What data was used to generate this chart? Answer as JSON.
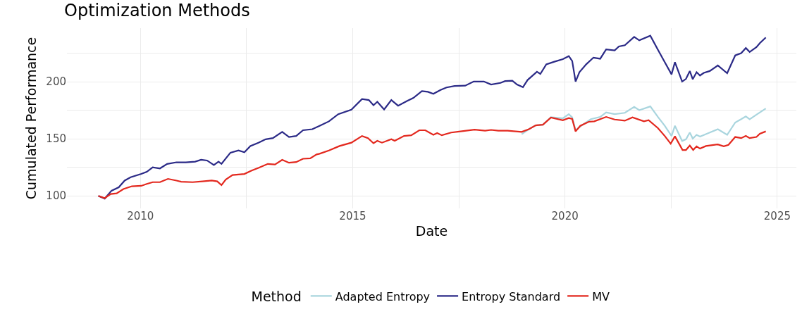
{
  "chart_data": {
    "type": "line",
    "title": "Optimization Methods",
    "xlabel": "Date",
    "ylabel": "Cumulated Performance",
    "legend_title": "Method",
    "legend": "bottom",
    "grid": true,
    "line_style": "solid",
    "marker": "none",
    "xlim": [
      2008.27,
      2025.45
    ],
    "xticks": [
      2010,
      {
        "value": 2012.5,
        "label": null
      },
      2015,
      {
        "value": 2017.5,
        "label": null
      },
      2020,
      {
        "value": 2022.5,
        "label": null
      },
      2025
    ],
    "ylim": [
      89,
      247
    ],
    "yticks": [
      100,
      {
        "value": 125,
        "label": null
      },
      150,
      {
        "value": 175,
        "label": null
      },
      200,
      {
        "value": 225,
        "label": null
      }
    ],
    "series": [
      {
        "name": "Adapted Entropy",
        "color": "#a9d5de",
        "x": [
          2018.98,
          2019.15,
          2019.31,
          2019.48,
          2019.67,
          2019.95,
          2020.09,
          2020.17,
          2020.25,
          2020.44,
          2020.61,
          2020.83,
          2020.97,
          2021.17,
          2021.41,
          2021.63,
          2021.75,
          2022.01,
          2022.19,
          2022.35,
          2022.51,
          2022.59,
          2022.76,
          2022.85,
          2022.94,
          2023.01,
          2023.1,
          2023.18,
          2023.41,
          2023.6,
          2023.82,
          2024.01,
          2024.15,
          2024.26,
          2024.35,
          2024.51,
          2024.73
        ],
        "values": [
          154,
          158.4,
          161.8,
          162.4,
          169,
          168,
          171.6,
          168.8,
          157.5,
          163,
          167.2,
          169.2,
          173.1,
          171.6,
          172.8,
          178,
          175.1,
          178.4,
          169.2,
          161.4,
          152.5,
          161.4,
          148.1,
          149.6,
          155.5,
          150.2,
          153.5,
          151.9,
          155.5,
          158.4,
          153.5,
          164.3,
          167.2,
          169.6,
          167.2,
          171.2,
          176.6
        ]
      },
      {
        "name": "Entropy Standard",
        "color": "#2b2a87",
        "x": [
          2009.01,
          2009.16,
          2009.32,
          2009.49,
          2009.63,
          2009.77,
          2010.02,
          2010.15,
          2010.29,
          2010.46,
          2010.63,
          2010.85,
          2011.07,
          2011.29,
          2011.43,
          2011.57,
          2011.73,
          2011.84,
          2011.91,
          2012.12,
          2012.31,
          2012.45,
          2012.59,
          2012.78,
          2012.95,
          2013.12,
          2013.34,
          2013.5,
          2013.67,
          2013.83,
          2014.05,
          2014.22,
          2014.44,
          2014.66,
          2014.97,
          2015.22,
          2015.38,
          2015.49,
          2015.58,
          2015.74,
          2015.91,
          2016.07,
          2016.27,
          2016.43,
          2016.63,
          2016.77,
          2016.9,
          2017.07,
          2017.21,
          2017.4,
          2017.65,
          2017.85,
          2018.09,
          2018.26,
          2018.48,
          2018.59,
          2018.76,
          2018.87,
          2019.01,
          2019.12,
          2019.34,
          2019.42,
          2019.56,
          2019.75,
          2019.95,
          2020.09,
          2020.17,
          2020.25,
          2020.34,
          2020.5,
          2020.67,
          2020.83,
          2020.97,
          2021.17,
          2021.27,
          2021.41,
          2021.63,
          2021.75,
          2022.01,
          2022.19,
          2022.35,
          2022.51,
          2022.59,
          2022.76,
          2022.85,
          2022.94,
          2023.01,
          2023.1,
          2023.18,
          2023.27,
          2023.41,
          2023.6,
          2023.82,
          2024.01,
          2024.15,
          2024.26,
          2024.35,
          2024.51,
          2024.59,
          2024.73
        ],
        "values": [
          100,
          97.6,
          104.5,
          107.5,
          113.4,
          116.3,
          119.2,
          121,
          125,
          124,
          128,
          129.4,
          129.4,
          130,
          131.6,
          131,
          127,
          130,
          128,
          137.8,
          139.8,
          138.2,
          143.7,
          146.6,
          149.6,
          150.6,
          156,
          151.6,
          152.5,
          157.5,
          158.4,
          161.4,
          165.3,
          171.6,
          175.5,
          184.9,
          184,
          179.4,
          182.5,
          175.7,
          184,
          179,
          183,
          185.9,
          191.8,
          191.2,
          189.4,
          192.8,
          195,
          196.3,
          196.6,
          200.2,
          200.2,
          197.6,
          199,
          200.6,
          201,
          197.6,
          195.3,
          201.6,
          208.8,
          206.9,
          215.3,
          217.6,
          219.8,
          222.5,
          218.2,
          200.2,
          208.4,
          215.3,
          221.2,
          220.2,
          228.4,
          227.5,
          231,
          232,
          239.4,
          236.3,
          240.4,
          228,
          217.2,
          206.5,
          217.2,
          200.2,
          202.5,
          209.4,
          202.2,
          208.4,
          205.5,
          207.8,
          209.4,
          214.3,
          207.5,
          223.1,
          225.1,
          229.6,
          226.1,
          230.4,
          233.9,
          238.8
        ]
      },
      {
        "name": "MV",
        "color": "#e3281e",
        "x": [
          2009.01,
          2009.16,
          2009.3,
          2009.44,
          2009.6,
          2009.8,
          2010.02,
          2010.15,
          2010.29,
          2010.46,
          2010.65,
          2010.85,
          2010.96,
          2011.23,
          2011.46,
          2011.68,
          2011.81,
          2011.91,
          2012.01,
          2012.17,
          2012.45,
          2012.62,
          2012.78,
          2013.0,
          2013.17,
          2013.34,
          2013.5,
          2013.67,
          2013.83,
          2014.0,
          2014.15,
          2014.22,
          2014.44,
          2014.69,
          2014.97,
          2015.22,
          2015.36,
          2015.49,
          2015.58,
          2015.69,
          2015.91,
          2015.99,
          2016.21,
          2016.38,
          2016.57,
          2016.71,
          2016.9,
          2016.99,
          2017.1,
          2017.32,
          2017.54,
          2017.87,
          2018.12,
          2018.26,
          2018.43,
          2018.65,
          2018.98,
          2019.15,
          2019.31,
          2019.48,
          2019.67,
          2019.95,
          2020.09,
          2020.17,
          2020.25,
          2020.36,
          2020.56,
          2020.69,
          2020.97,
          2021.17,
          2021.41,
          2021.59,
          2021.86,
          2021.97,
          2022.19,
          2022.35,
          2022.49,
          2022.59,
          2022.77,
          2022.85,
          2022.94,
          2023.02,
          2023.1,
          2023.18,
          2023.32,
          2023.6,
          2023.74,
          2023.85,
          2024.01,
          2024.15,
          2024.26,
          2024.35,
          2024.51,
          2024.59,
          2024.73
        ],
        "values": [
          100,
          98,
          101.6,
          102.2,
          106,
          108.4,
          108.8,
          110.4,
          112,
          112,
          114.9,
          113.4,
          112.4,
          112,
          112.7,
          113.4,
          112.7,
          109.4,
          114.3,
          118.2,
          119.2,
          122.2,
          124.5,
          128,
          127.5,
          131.6,
          129,
          129.6,
          132.5,
          132.9,
          136.3,
          136.9,
          139.8,
          143.7,
          146.6,
          152.5,
          150.6,
          146.1,
          148.2,
          146.6,
          149.6,
          148.2,
          152.5,
          153.1,
          157.5,
          157.5,
          153.5,
          155.1,
          153.1,
          155.5,
          156.5,
          158.1,
          157.1,
          157.8,
          157.1,
          157.1,
          156.1,
          158.4,
          161.8,
          162.4,
          168.6,
          166.3,
          168.2,
          167.4,
          156.5,
          161.4,
          164.9,
          165.3,
          169.2,
          166.9,
          165.9,
          168.8,
          165.3,
          166.3,
          159.4,
          152.5,
          145.7,
          152.2,
          140.2,
          140.2,
          144.1,
          140.2,
          143.4,
          141.4,
          143.7,
          145.1,
          143.4,
          144.7,
          151.6,
          150.6,
          152.5,
          150.6,
          151.6,
          154.5,
          156.5
        ]
      }
    ]
  }
}
